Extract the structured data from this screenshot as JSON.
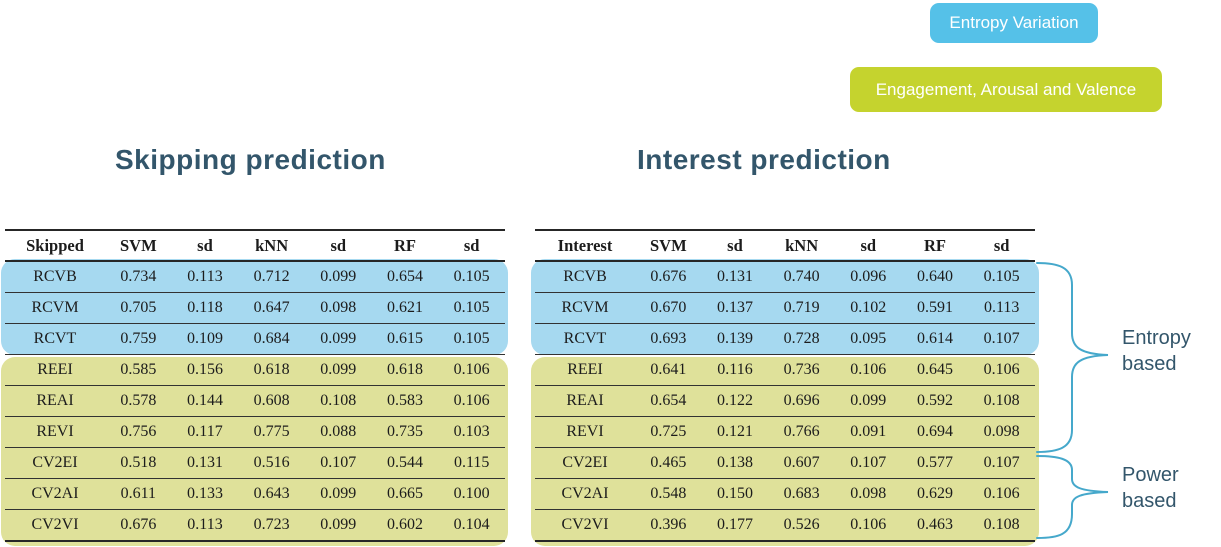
{
  "legend": {
    "items": [
      {
        "label": "Entropy Variation",
        "color": "#55C1E8"
      },
      {
        "label": "Engagement, Arousal and Valence",
        "color": "#C5D32E"
      }
    ]
  },
  "tables": [
    {
      "title": "Skipping prediction",
      "header": [
        "Skipped",
        "SVM",
        "sd",
        "kNN",
        "sd",
        "RF",
        "sd"
      ],
      "rows": [
        {
          "name": "RCVB",
          "group": "entropy-variation",
          "values": [
            "0.734",
            "0.113",
            "0.712",
            "0.099",
            "0.654",
            "0.105"
          ]
        },
        {
          "name": "RCVM",
          "group": "entropy-variation",
          "values": [
            "0.705",
            "0.118",
            "0.647",
            "0.098",
            "0.621",
            "0.105"
          ]
        },
        {
          "name": "RCVT",
          "group": "entropy-variation",
          "values": [
            "0.759",
            "0.109",
            "0.684",
            "0.099",
            "0.615",
            "0.105"
          ]
        },
        {
          "name": "REEI",
          "group": "engagement-arousal-valence",
          "values": [
            "0.585",
            "0.156",
            "0.618",
            "0.099",
            "0.618",
            "0.106"
          ]
        },
        {
          "name": "REAI",
          "group": "engagement-arousal-valence",
          "values": [
            "0.578",
            "0.144",
            "0.608",
            "0.108",
            "0.583",
            "0.106"
          ]
        },
        {
          "name": "REVI",
          "group": "engagement-arousal-valence",
          "values": [
            "0.756",
            "0.117",
            "0.775",
            "0.088",
            "0.735",
            "0.103"
          ]
        },
        {
          "name": "CV2EI",
          "group": "engagement-arousal-valence",
          "values": [
            "0.518",
            "0.131",
            "0.516",
            "0.107",
            "0.544",
            "0.115"
          ]
        },
        {
          "name": "CV2AI",
          "group": "engagement-arousal-valence",
          "values": [
            "0.611",
            "0.133",
            "0.643",
            "0.099",
            "0.665",
            "0.100"
          ]
        },
        {
          "name": "CV2VI",
          "group": "engagement-arousal-valence",
          "values": [
            "0.676",
            "0.113",
            "0.723",
            "0.099",
            "0.602",
            "0.104"
          ]
        }
      ]
    },
    {
      "title": "Interest prediction",
      "header": [
        "Interest",
        "SVM",
        "sd",
        "kNN",
        "sd",
        "RF",
        "sd"
      ],
      "rows": [
        {
          "name": "RCVB",
          "group": "entropy-variation",
          "values": [
            "0.676",
            "0.131",
            "0.740",
            "0.096",
            "0.640",
            "0.105"
          ]
        },
        {
          "name": "RCVM",
          "group": "entropy-variation",
          "values": [
            "0.670",
            "0.137",
            "0.719",
            "0.102",
            "0.591",
            "0.113"
          ]
        },
        {
          "name": "RCVT",
          "group": "entropy-variation",
          "values": [
            "0.693",
            "0.139",
            "0.728",
            "0.095",
            "0.614",
            "0.107"
          ]
        },
        {
          "name": "REEI",
          "group": "engagement-arousal-valence",
          "values": [
            "0.641",
            "0.116",
            "0.736",
            "0.106",
            "0.645",
            "0.106"
          ]
        },
        {
          "name": "REAI",
          "group": "engagement-arousal-valence",
          "values": [
            "0.654",
            "0.122",
            "0.696",
            "0.099",
            "0.592",
            "0.108"
          ]
        },
        {
          "name": "REVI",
          "group": "engagement-arousal-valence",
          "values": [
            "0.725",
            "0.121",
            "0.766",
            "0.091",
            "0.694",
            "0.098"
          ]
        },
        {
          "name": "CV2EI",
          "group": "engagement-arousal-valence",
          "values": [
            "0.465",
            "0.138",
            "0.607",
            "0.107",
            "0.577",
            "0.107"
          ]
        },
        {
          "name": "CV2AI",
          "group": "engagement-arousal-valence",
          "values": [
            "0.548",
            "0.150",
            "0.683",
            "0.098",
            "0.629",
            "0.106"
          ]
        },
        {
          "name": "CV2VI",
          "group": "engagement-arousal-valence",
          "values": [
            "0.396",
            "0.177",
            "0.526",
            "0.106",
            "0.463",
            "0.108"
          ]
        }
      ]
    }
  ],
  "annotations": {
    "entropy_based": "Entropy based",
    "power_based": "Power based"
  },
  "colors": {
    "legend_blue": "#55C1E8",
    "legend_green": "#C5D32E",
    "highlight_blue": "#A6D9F0",
    "highlight_yellow": "#DFE19A",
    "brace": "#45A8CB",
    "title_text": "#33566B"
  }
}
